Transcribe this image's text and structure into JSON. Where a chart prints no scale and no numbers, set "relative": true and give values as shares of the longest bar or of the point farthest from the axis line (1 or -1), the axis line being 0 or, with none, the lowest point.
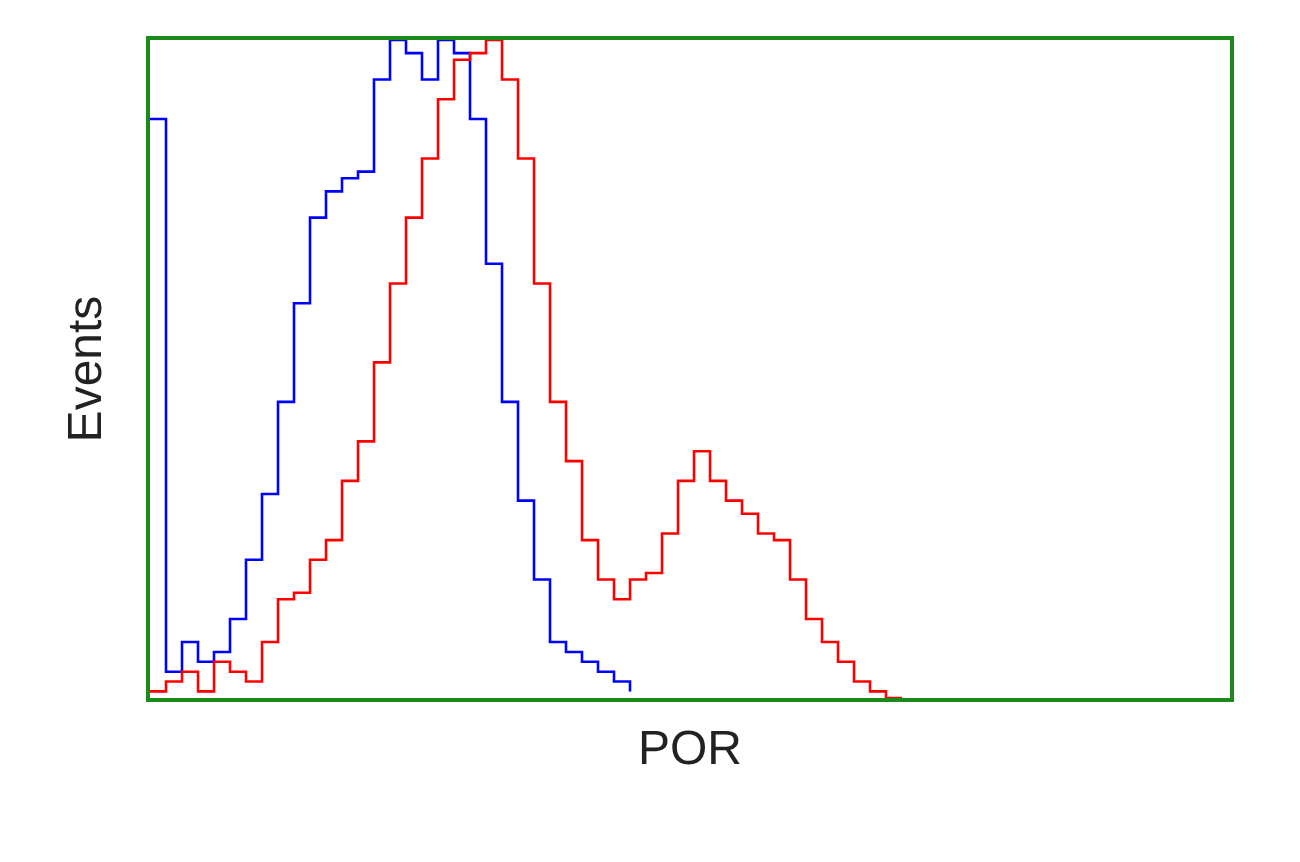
{
  "chart_data": {
    "type": "step",
    "relative": true,
    "xlabel": "POR",
    "ylabel": "Events",
    "tick_labels": false,
    "categories": [
      null,
      null,
      null,
      null,
      null,
      null,
      null,
      null,
      null,
      null,
      null,
      null,
      null,
      null,
      null,
      null,
      null,
      null,
      null,
      null,
      null,
      null,
      null,
      null,
      null,
      null,
      null,
      null,
      null,
      null,
      null,
      null,
      null,
      null,
      null,
      null,
      null,
      null,
      null,
      null,
      null,
      null,
      null,
      null,
      null,
      null,
      null,
      null,
      null,
      null,
      null,
      null,
      null,
      null,
      null,
      null,
      null,
      null,
      null,
      null,
      null,
      null,
      null,
      null,
      null,
      null,
      null,
      null
    ],
    "series": [
      {
        "color": "#0000ff",
        "values": [
          0.88,
          0.04,
          0.085,
          0.055,
          0.07,
          0.12,
          0.21,
          0.31,
          0.45,
          0.6,
          0.73,
          0.77,
          0.79,
          0.8,
          0.94,
          1,
          0.98,
          0.94,
          1,
          0.98,
          0.88,
          0.66,
          0.45,
          0.3,
          0.18,
          0.085,
          0.07,
          0.055,
          0.04,
          0.025,
          0.01,
          null,
          null,
          null,
          null,
          null,
          null,
          null,
          null,
          null,
          null,
          null,
          null,
          null,
          null,
          null,
          null,
          null,
          null,
          null,
          null,
          null,
          null,
          null,
          null,
          null,
          null,
          null,
          null,
          null,
          null,
          null,
          null,
          null,
          null,
          null,
          null,
          null
        ]
      },
      {
        "color": "#ff0000",
        "values": [
          0.01,
          0.025,
          0.04,
          0.01,
          0.055,
          0.04,
          0.025,
          0.085,
          0.15,
          0.16,
          0.21,
          0.24,
          0.33,
          0.39,
          0.51,
          0.63,
          0.73,
          0.82,
          0.91,
          0.97,
          0.98,
          1,
          0.94,
          0.82,
          0.63,
          0.45,
          0.36,
          0.24,
          0.18,
          0.15,
          0.18,
          0.19,
          0.25,
          0.33,
          0.375,
          0.33,
          0.3,
          0.28,
          0.25,
          0.24,
          0.18,
          0.12,
          0.085,
          0.055,
          0.025,
          0.01,
          0,
          0,
          null,
          null,
          null,
          null,
          null,
          null,
          null,
          null,
          null,
          null,
          null,
          null,
          null,
          null,
          null,
          null,
          null,
          null,
          null,
          null
        ]
      }
    ]
  }
}
